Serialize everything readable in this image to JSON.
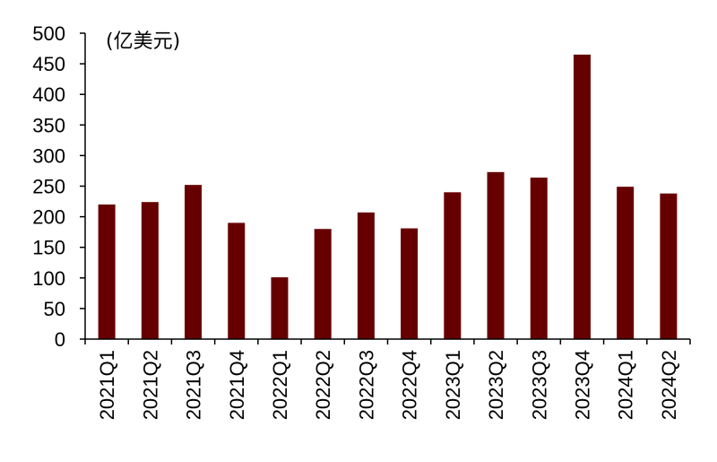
{
  "chart_data": {
    "type": "bar",
    "unit_label": "(亿美元)",
    "categories": [
      "2021Q1",
      "2021Q2",
      "2021Q3",
      "2021Q4",
      "2022Q1",
      "2022Q2",
      "2022Q3",
      "2022Q4",
      "2023Q1",
      "2023Q2",
      "2023Q3",
      "2023Q4",
      "2024Q1",
      "2024Q2"
    ],
    "values": [
      220,
      224,
      252,
      190,
      101,
      180,
      207,
      181,
      240,
      273,
      264,
      465,
      249,
      238
    ],
    "ylim": [
      0,
      500
    ],
    "yticks": [
      0,
      50,
      100,
      150,
      200,
      250,
      300,
      350,
      400,
      450,
      500
    ],
    "bar_color": "#660000",
    "grid": false,
    "legend": "none"
  }
}
